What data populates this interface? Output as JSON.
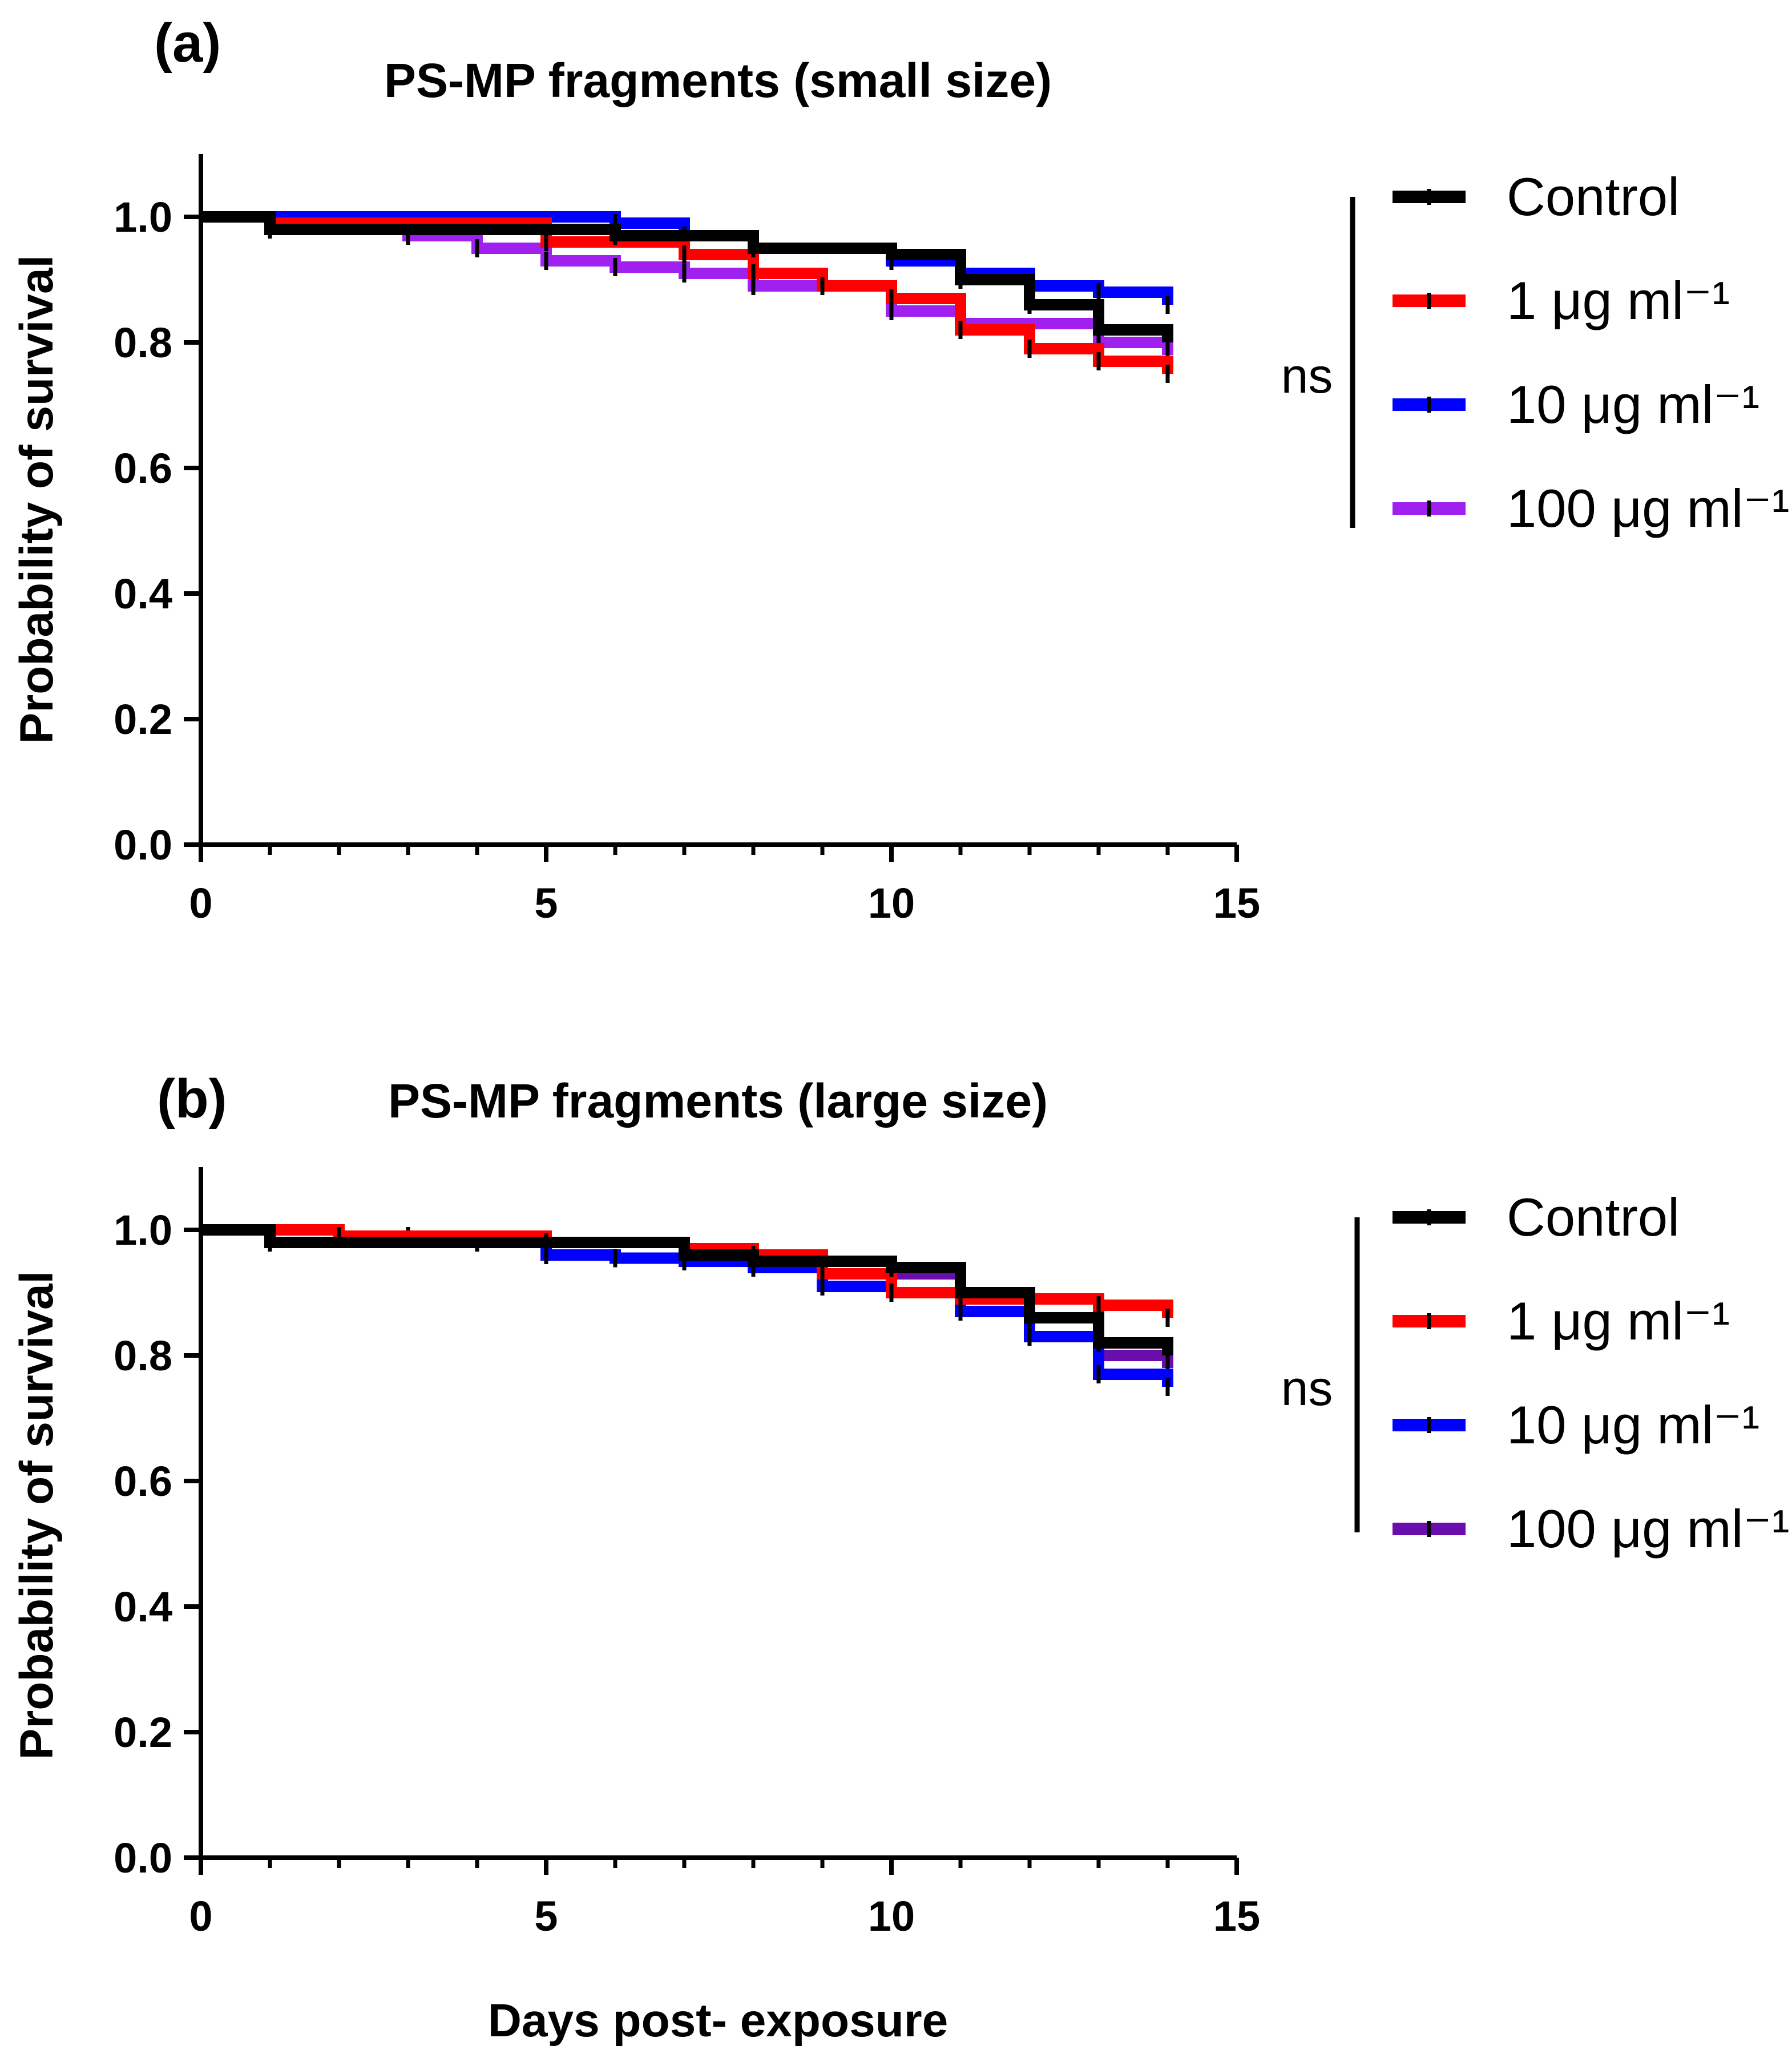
{
  "chart_data": [
    {
      "type": "line",
      "subtype": "kaplan-meier-step",
      "panel_label": "(a)",
      "title": "PS-MP fragments (small size)",
      "xlabel": "",
      "ylabel": "Probability of survival",
      "xlim": [
        0,
        15
      ],
      "ylim": [
        0,
        1.1
      ],
      "xticks": [
        "0",
        "5",
        "10",
        "15"
      ],
      "yticks": [
        "0.0",
        "0.2",
        "0.4",
        "0.6",
        "0.8",
        "1.0"
      ],
      "series": [
        {
          "name": "Control",
          "color": "#000000",
          "x": [
            0,
            1,
            6,
            8,
            10,
            11,
            12,
            13,
            14
          ],
          "y": [
            1.0,
            0.98,
            0.97,
            0.95,
            0.94,
            0.9,
            0.86,
            0.82,
            0.8
          ]
        },
        {
          "name": "1 μg ml⁻¹",
          "color": "#ff0000",
          "x": [
            0,
            1,
            5,
            7,
            8,
            9,
            10,
            11,
            12,
            13,
            14
          ],
          "y": [
            1.0,
            0.99,
            0.96,
            0.94,
            0.91,
            0.89,
            0.87,
            0.82,
            0.79,
            0.77,
            0.75
          ]
        },
        {
          "name": "10 μg ml⁻¹",
          "color": "#0000ff",
          "x": [
            0,
            6,
            7,
            8,
            10,
            11,
            12,
            13,
            14
          ],
          "y": [
            1.0,
            0.99,
            0.97,
            0.95,
            0.93,
            0.91,
            0.89,
            0.88,
            0.86
          ]
        },
        {
          "name": "100 μg ml⁻¹",
          "color": "#a020f0",
          "x": [
            0,
            3,
            4,
            5,
            6,
            7,
            8,
            10,
            11,
            13,
            14
          ],
          "y": [
            1.0,
            0.97,
            0.95,
            0.93,
            0.92,
            0.91,
            0.89,
            0.85,
            0.83,
            0.8,
            0.78
          ]
        }
      ],
      "annotation": "ns"
    },
    {
      "type": "line",
      "subtype": "kaplan-meier-step",
      "panel_label": "(b)",
      "title": "PS-MP fragments (large size)",
      "xlabel": "Days post- exposure",
      "ylabel": "Probability of survival",
      "xlim": [
        0,
        15
      ],
      "ylim": [
        0,
        1.1
      ],
      "xticks": [
        "0",
        "5",
        "10",
        "15"
      ],
      "yticks": [
        "0.0",
        "0.2",
        "0.4",
        "0.6",
        "0.8",
        "1.0"
      ],
      "series": [
        {
          "name": "Control",
          "color": "#000000",
          "x": [
            0,
            1,
            5,
            7,
            8,
            10,
            11,
            12,
            13,
            14
          ],
          "y": [
            1.0,
            0.98,
            0.98,
            0.96,
            0.95,
            0.94,
            0.9,
            0.86,
            0.82,
            0.8
          ]
        },
        {
          "name": "1 μg ml⁻¹",
          "color": "#ff0000",
          "x": [
            0,
            2,
            5,
            7,
            8,
            9,
            10,
            11,
            13,
            14
          ],
          "y": [
            1.0,
            0.99,
            0.98,
            0.97,
            0.96,
            0.93,
            0.9,
            0.89,
            0.88,
            0.86
          ]
        },
        {
          "name": "10 μg ml⁻¹",
          "color": "#0000ff",
          "x": [
            0,
            1,
            5,
            6,
            7,
            8,
            9,
            10,
            11,
            12,
            13,
            14
          ],
          "y": [
            1.0,
            0.98,
            0.96,
            0.955,
            0.95,
            0.94,
            0.91,
            0.9,
            0.87,
            0.83,
            0.77,
            0.75
          ]
        },
        {
          "name": "100 μg ml⁻¹",
          "color": "#6a0dad",
          "x": [
            0,
            1,
            3,
            4,
            7,
            8,
            10,
            11,
            13,
            14
          ],
          "y": [
            1.0,
            0.98,
            0.99,
            0.98,
            0.97,
            0.95,
            0.93,
            0.89,
            0.8,
            0.78
          ]
        }
      ],
      "annotation": "ns"
    }
  ]
}
